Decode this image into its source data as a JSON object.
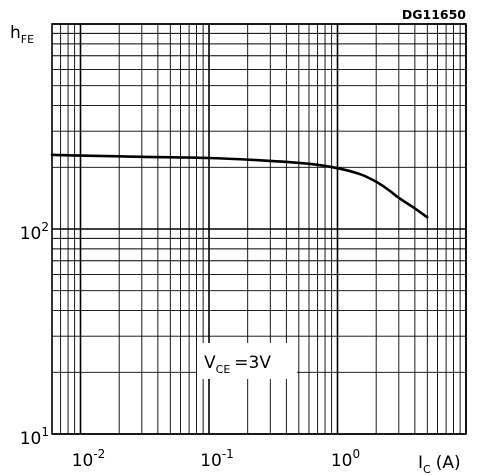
{
  "chart_data": {
    "type": "line",
    "id_label": "DG11650",
    "ylabel": {
      "base": "h",
      "sub": "FE"
    },
    "xlabel": {
      "base": "I",
      "sub": "C",
      "unit": "(A)"
    },
    "annotation": {
      "base": "V",
      "sub": "CE",
      "rest": "=3V"
    },
    "x_scale": "log",
    "y_scale": "log",
    "xlim": [
      0.006,
      10
    ],
    "ylim": [
      10,
      1000
    ],
    "grid": true,
    "x_ticks": [
      {
        "value": 0.01,
        "base": "10",
        "exp": "-2"
      },
      {
        "value": 0.1,
        "base": "10",
        "exp": "-1"
      },
      {
        "value": 1,
        "base": "10",
        "exp": "0"
      }
    ],
    "y_ticks": [
      {
        "value": 10,
        "base": "10",
        "exp": "1"
      },
      {
        "value": 100,
        "base": "10",
        "exp": "2"
      }
    ],
    "series": [
      {
        "x": [
          0.006,
          0.01,
          0.03,
          0.1,
          0.3,
          0.6,
          1.0,
          1.5,
          2.0,
          2.5,
          3.0,
          4.0,
          5.0
        ],
        "y": [
          230,
          228,
          225,
          222,
          215,
          208,
          198,
          185,
          170,
          155,
          142,
          126,
          114
        ]
      }
    ]
  }
}
